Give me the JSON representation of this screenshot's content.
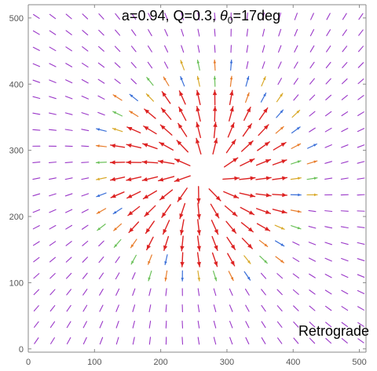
{
  "chart_data": {
    "type": "vector-field",
    "title_parts": {
      "prefix": "a=0.94, Q=0.3, ",
      "theta_symbol": "θ",
      "theta_subscript": "0",
      "suffix": "=17deg"
    },
    "annotation": "Retrograde",
    "xlim": [
      0,
      510
    ],
    "ylim": [
      -5,
      520
    ],
    "x_ticks": [
      0,
      100,
      200,
      300,
      400,
      500
    ],
    "y_ticks": [
      0,
      100,
      200,
      300,
      400,
      500
    ],
    "x_tick_labels": [
      "0",
      "100",
      "200",
      "300",
      "400",
      "500"
    ],
    "y_tick_labels": [
      "0",
      "100",
      "200",
      "300",
      "400",
      "500"
    ],
    "grid": false,
    "legend": "none",
    "field": {
      "grid_step": 24.5,
      "grid_origin": 12.25,
      "center": [
        262,
        262
      ],
      "hole_radius": 28,
      "strong_radius": 135,
      "max_radius": 175
    },
    "colors": {
      "strong": "#dd2222",
      "weak": "#9a37c8",
      "medium_blue": "#3a6fd8",
      "medium_orange": "#e87c2a",
      "medium_green": "#6cc15a",
      "medium_yellow": "#d9a92a",
      "axis": "#888888"
    }
  }
}
